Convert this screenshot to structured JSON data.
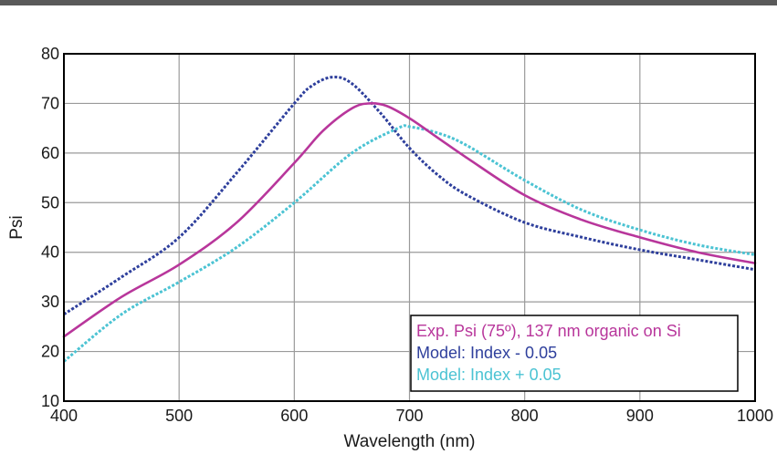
{
  "chart_data": {
    "type": "line",
    "xlabel": "Wavelength (nm)",
    "ylabel": "Psi",
    "xlim": [
      400,
      1000
    ],
    "ylim": [
      10,
      80
    ],
    "x_ticks": [
      400,
      500,
      600,
      700,
      800,
      900,
      1000
    ],
    "y_ticks": [
      10,
      20,
      30,
      40,
      50,
      60,
      70,
      80
    ],
    "grid": true,
    "legend_position": "bottom-right",
    "series": [
      {
        "name": "Exp. Psi (75º), 137 nm organic on Si",
        "color": "#b8369b",
        "style": "solid",
        "x": [
          400,
          450,
          500,
          550,
          600,
          625,
          650,
          665,
          680,
          700,
          725,
          750,
          800,
          850,
          900,
          950,
          1000
        ],
        "y": [
          23,
          31,
          37.5,
          46,
          58,
          64.5,
          69,
          70,
          69.5,
          67,
          63,
          59,
          51.5,
          46.5,
          43,
          40,
          37.8
        ]
      },
      {
        "name": "Model: Index - 0.05",
        "color": "#2e3f9c",
        "style": "dotted",
        "x": [
          400,
          450,
          500,
          550,
          600,
          615,
          633,
          650,
          675,
          700,
          725,
          750,
          800,
          850,
          900,
          950,
          1000
        ],
        "y": [
          27.5,
          35,
          43,
          56,
          70,
          73.5,
          75.3,
          74,
          68,
          61,
          55.5,
          51.5,
          46,
          43,
          40.5,
          38.5,
          36.5
        ]
      },
      {
        "name": "Model: Index + 0.05",
        "color": "#4bc3d3",
        "style": "dotted",
        "x": [
          400,
          450,
          500,
          550,
          600,
          650,
          690,
          700,
          725,
          750,
          800,
          850,
          900,
          950,
          1000
        ],
        "y": [
          18,
          27.5,
          34,
          41,
          50,
          60,
          65,
          65.3,
          64,
          61.5,
          54.5,
          48.5,
          44.5,
          41.5,
          39.5
        ]
      }
    ]
  }
}
